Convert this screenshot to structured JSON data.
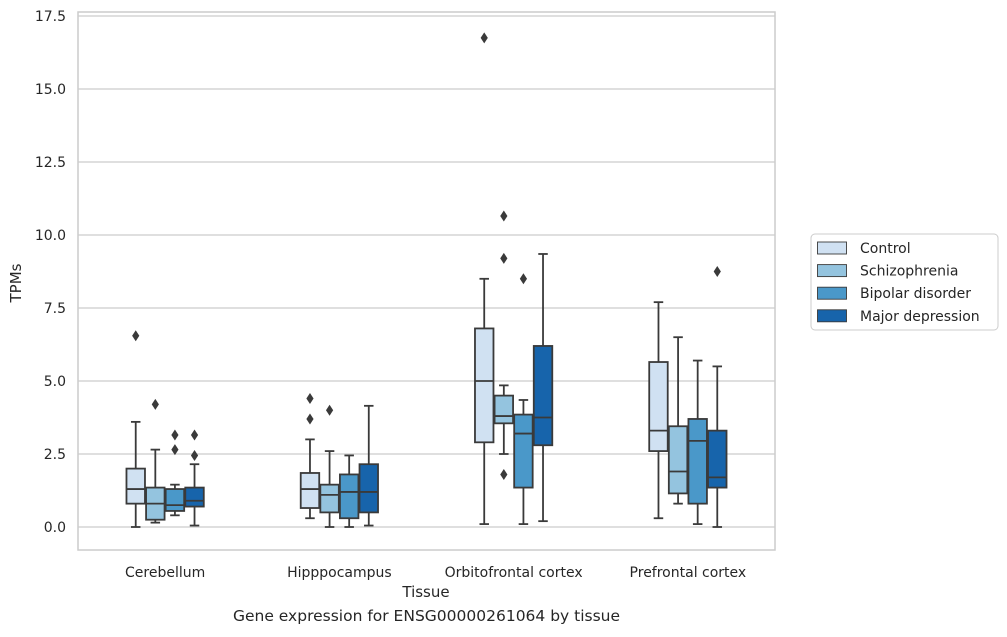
{
  "caption": "Gene expression for ENSG00000261064 by tissue",
  "colors": {
    "Control": "#d0e1f2",
    "Schizophrenia": "#94c4df",
    "Bipolar disorder": "#4a98c9",
    "Major depression": "#1764ab",
    "line": "#3a3a3a",
    "grid": "#cccccc",
    "frame": "#cccccc"
  },
  "chart_data": {
    "type": "box",
    "title": "",
    "xlabel": "Tissue",
    "ylabel": "TPMs",
    "ylim": [
      -0.8,
      17.6
    ],
    "yticks": [
      0.0,
      2.5,
      5.0,
      7.5,
      10.0,
      12.5,
      15.0,
      17.5
    ],
    "ytick_labels": [
      "0.0",
      "2.5",
      "5.0",
      "7.5",
      "10.0",
      "12.5",
      "15.0",
      "17.5"
    ],
    "grid": "horizontal",
    "legend_position": "outside right",
    "categories": [
      "Cerebellum",
      "Hipppocampus",
      "Orbitofrontal cortex",
      "Prefrontal cortex"
    ],
    "series": [
      {
        "name": "Control",
        "boxes": [
          {
            "whisker_low": 0.0,
            "q1": 0.8,
            "median": 1.3,
            "q3": 2.0,
            "whisker_high": 3.6,
            "outliers": [
              6.55
            ]
          },
          {
            "whisker_low": 0.3,
            "q1": 0.65,
            "median": 1.3,
            "q3": 1.85,
            "whisker_high": 3.0,
            "outliers": [
              3.7,
              4.4
            ]
          },
          {
            "whisker_low": 0.1,
            "q1": 2.9,
            "median": 5.0,
            "q3": 6.8,
            "whisker_high": 8.5,
            "outliers": [
              16.75
            ]
          },
          {
            "whisker_low": 0.3,
            "q1": 2.6,
            "median": 3.3,
            "q3": 5.65,
            "whisker_high": 7.7,
            "outliers": []
          }
        ]
      },
      {
        "name": "Schizophrenia",
        "boxes": [
          {
            "whisker_low": 0.15,
            "q1": 0.25,
            "median": 0.8,
            "q3": 1.35,
            "whisker_high": 2.65,
            "outliers": [
              4.2
            ]
          },
          {
            "whisker_low": 0.0,
            "q1": 0.5,
            "median": 1.1,
            "q3": 1.45,
            "whisker_high": 2.6,
            "outliers": [
              4.0
            ]
          },
          {
            "whisker_low": 2.5,
            "q1": 3.55,
            "median": 3.8,
            "q3": 4.5,
            "whisker_high": 4.85,
            "outliers": [
              10.65,
              9.2,
              1.8
            ]
          },
          {
            "whisker_low": 0.8,
            "q1": 1.15,
            "median": 1.9,
            "q3": 3.45,
            "whisker_high": 6.5,
            "outliers": []
          }
        ]
      },
      {
        "name": "Bipolar disorder",
        "boxes": [
          {
            "whisker_low": 0.4,
            "q1": 0.55,
            "median": 0.75,
            "q3": 1.3,
            "whisker_high": 1.45,
            "outliers": [
              2.65,
              3.15
            ]
          },
          {
            "whisker_low": 0.0,
            "q1": 0.3,
            "median": 1.2,
            "q3": 1.8,
            "whisker_high": 2.45,
            "outliers": []
          },
          {
            "whisker_low": 0.1,
            "q1": 1.35,
            "median": 3.2,
            "q3": 3.85,
            "whisker_high": 4.35,
            "outliers": [
              8.5
            ]
          },
          {
            "whisker_low": 0.1,
            "q1": 0.8,
            "median": 2.95,
            "q3": 3.7,
            "whisker_high": 5.7,
            "outliers": []
          }
        ]
      },
      {
        "name": "Major depression",
        "boxes": [
          {
            "whisker_low": 0.05,
            "q1": 0.7,
            "median": 0.9,
            "q3": 1.35,
            "whisker_high": 2.15,
            "outliers": [
              2.45,
              3.15
            ]
          },
          {
            "whisker_low": 0.05,
            "q1": 0.5,
            "median": 1.2,
            "q3": 2.15,
            "whisker_high": 4.15,
            "outliers": []
          },
          {
            "whisker_low": 0.2,
            "q1": 2.8,
            "median": 3.75,
            "q3": 6.2,
            "whisker_high": 9.35,
            "outliers": []
          },
          {
            "whisker_low": 0.0,
            "q1": 1.35,
            "median": 1.7,
            "q3": 3.3,
            "whisker_high": 5.5,
            "outliers": [
              8.75
            ]
          }
        ]
      }
    ]
  }
}
